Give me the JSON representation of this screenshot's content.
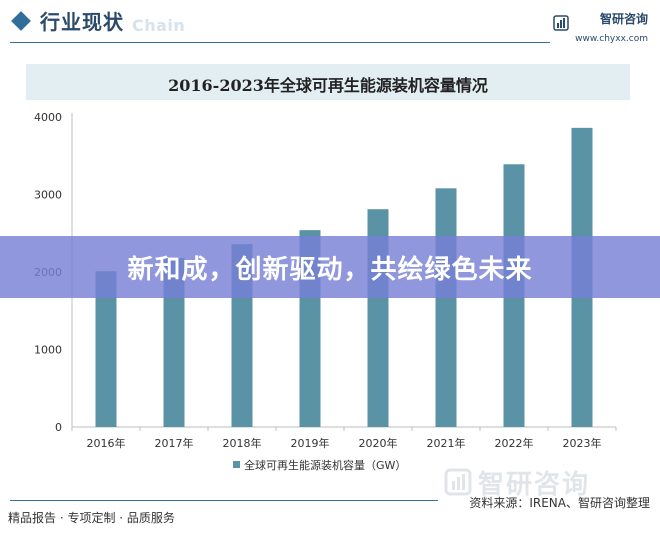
{
  "header": {
    "title": "行业现状",
    "watermark_en": "Chain",
    "brand_name": "智研咨询",
    "brand_url": "www.chyxx.com",
    "brand_icon": "bar-chart-logo-icon"
  },
  "chart_data": {
    "type": "bar",
    "title": "2016-2023年全球可再生能源装机容量情况",
    "categories": [
      "2016年",
      "2017年",
      "2018年",
      "2019年",
      "2020年",
      "2021年",
      "2022年",
      "2023年"
    ],
    "series": [
      {
        "name": "全球可再生能源装机容量（GW）",
        "values": [
          2010,
          2180,
          2360,
          2540,
          2810,
          3080,
          3390,
          3860
        ]
      }
    ],
    "y_ticks": [
      "0",
      "1000",
      "2000",
      "3000",
      "4000"
    ],
    "ylim": [
      0,
      4000
    ],
    "grid": false,
    "legend_position": "bottom",
    "bar_color": "#5a93a6"
  },
  "banner": {
    "text": "新和成，创新驱动，共绘绿色未来",
    "color": "#7880d6"
  },
  "footer": {
    "left": "精品报告 · 专项定制 · 品质服务",
    "source": "资料来源：IRENA、智研咨询整理",
    "watermark": "智研咨询"
  }
}
